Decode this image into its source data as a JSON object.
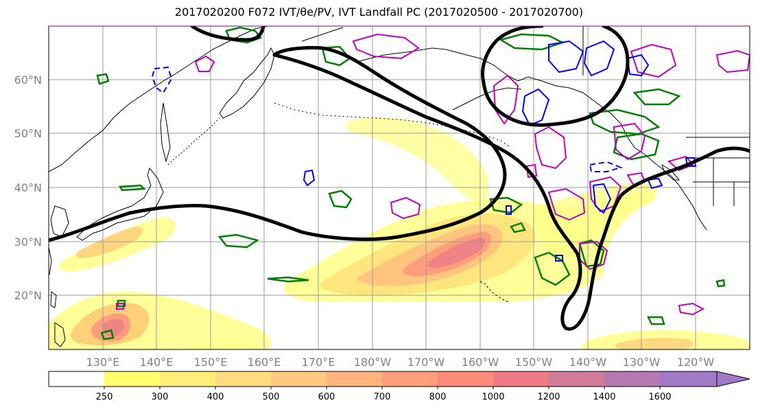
{
  "title": "2017020200 F072 IVT/θe/PV, IVT Landfall PC (2017020500 - 2017020700)",
  "lat_labels": [
    "20°N",
    "30°N",
    "40°N",
    "50°N",
    "60°N"
  ],
  "lon_labels": [
    "130°E",
    "140°E",
    "150°E",
    "160°E",
    "170°E",
    "180°W",
    "170°W",
    "160°W",
    "150°W",
    "140°W",
    "130°W",
    "120°W"
  ],
  "colorbar": {
    "ticks": [
      "250",
      "300",
      "400",
      "500",
      "600",
      "700",
      "800",
      "1000",
      "1200",
      "1400",
      "1600"
    ],
    "colors": [
      "#ffffff",
      "#ffff6e",
      "#ffee78",
      "#ffdd7e",
      "#ffca80",
      "#ffb47e",
      "#ffa07a",
      "#ff8a78",
      "#f07a86",
      "#d27a9a",
      "#b67ab2",
      "#a07ac6"
    ]
  },
  "colors": {
    "ivt_contour": "#000000",
    "theta_e": "#008000",
    "pv_positive": "#c000c0",
    "pv_negative": "#0000ff",
    "coastline": "#000000",
    "grid": "#999999"
  },
  "chart_data": {
    "type": "heatmap",
    "title": "2017020200 F072 IVT/θe/PV, IVT Landfall PC (2017020500 - 2017020700)",
    "projection": "PlateCarree",
    "extent": {
      "lon_min": 120,
      "lon_max": 250,
      "lat_min": 10,
      "lat_max": 70
    },
    "levels": [
      250,
      300,
      400,
      500,
      600,
      700,
      800,
      1000,
      1200,
      1400,
      1600
    ],
    "grid": true,
    "ivt_maxima": [
      {
        "lon": 197,
        "lat": 29,
        "level": 1000
      },
      {
        "lon": 132.5,
        "lat": 14,
        "level": 1000
      },
      {
        "lon": 130.5,
        "lat": 32,
        "level": 500
      }
    ]
  }
}
